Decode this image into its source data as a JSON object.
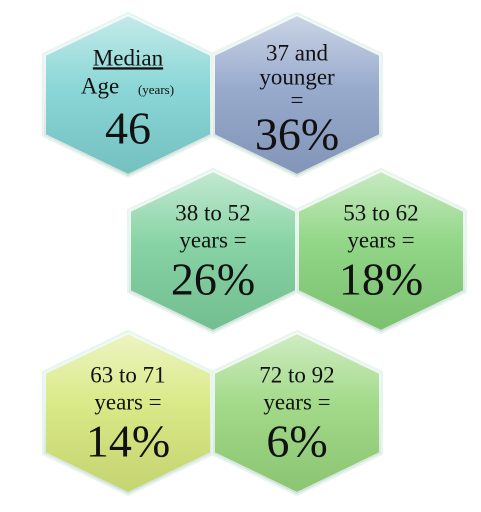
{
  "hexagons": [
    {
      "title": "Median",
      "line": "Age",
      "unit": "(years)",
      "value": "46"
    },
    {
      "lines": [
        "37 and",
        "younger",
        "="
      ],
      "value": "36%"
    },
    {
      "lines": [
        "38 to 52",
        "years ="
      ],
      "value": "26%"
    },
    {
      "lines": [
        "53 to 62",
        "years ="
      ],
      "value": "18%"
    },
    {
      "lines": [
        "63 to 71",
        "years ="
      ],
      "value": "14%"
    },
    {
      "lines": [
        "72 to 92",
        "years ="
      ],
      "value": "6%"
    }
  ]
}
